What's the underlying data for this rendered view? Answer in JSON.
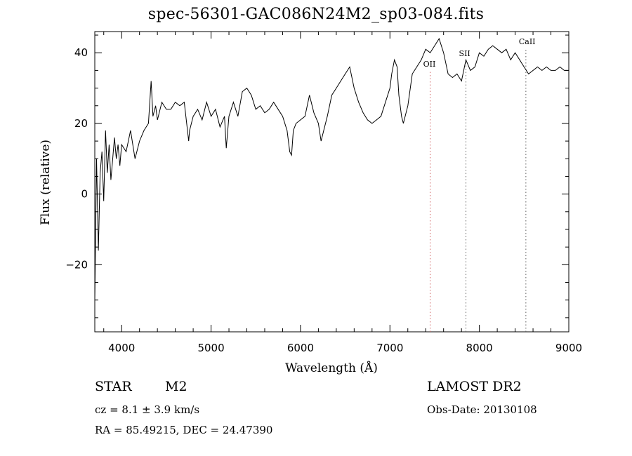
{
  "chart_data": {
    "type": "line",
    "title": "spec-56301-GAC086N24M2_sp03-084.fits",
    "xlabel": "Wavelength (Å)",
    "ylabel": "Flux (relative)",
    "xlim": [
      3700,
      9000
    ],
    "ylim": [
      -39,
      46
    ],
    "xticks": [
      4000,
      5000,
      6000,
      7000,
      8000,
      9000
    ],
    "yticks": [
      -20,
      0,
      20,
      40
    ],
    "series": [
      {
        "x": [
          3700,
          3720,
          3740,
          3760,
          3780,
          3800,
          3820,
          3840,
          3860,
          3880,
          3900,
          3920,
          3940,
          3960,
          3980,
          4000,
          4050,
          4100,
          4150,
          4200,
          4250,
          4300,
          4330,
          4350,
          4380,
          4400,
          4450,
          4500,
          4550,
          4600,
          4650,
          4700,
          4750,
          4760,
          4800,
          4850,
          4900,
          4950,
          5000,
          5050,
          5100,
          5150,
          5170,
          5200,
          5250,
          5300,
          5350,
          5400,
          5450,
          5500,
          5550,
          5600,
          5650,
          5700,
          5750,
          5800,
          5850,
          5880,
          5900,
          5920,
          5950,
          6000,
          6050,
          6100,
          6150,
          6200,
          6230,
          6260,
          6300,
          6350,
          6400,
          6450,
          6500,
          6550,
          6600,
          6650,
          6700,
          6750,
          6800,
          6850,
          6900,
          6950,
          7000,
          7020,
          7050,
          7080,
          7100,
          7130,
          7150,
          7200,
          7250,
          7300,
          7350,
          7400,
          7450,
          7500,
          7550,
          7600,
          7650,
          7700,
          7750,
          7800,
          7850,
          7900,
          7950,
          8000,
          8050,
          8100,
          8150,
          8200,
          8250,
          8300,
          8350,
          8400,
          8450,
          8500,
          8550,
          8600,
          8650,
          8700,
          8750,
          8800,
          8850,
          8900,
          8950,
          9000
        ],
        "y": [
          -30,
          10,
          -16,
          6,
          12,
          -2,
          18,
          6,
          14,
          4,
          10,
          16,
          10,
          14,
          8,
          14,
          12,
          18,
          10,
          15,
          18,
          20,
          32,
          22,
          25,
          21,
          26,
          24,
          24,
          26,
          25,
          26,
          15,
          18,
          22,
          24,
          21,
          26,
          22,
          24,
          19,
          22,
          13,
          22,
          26,
          22,
          29,
          30,
          28,
          24,
          25,
          23,
          24,
          26,
          24,
          22,
          18,
          12,
          11,
          18,
          20,
          21,
          22,
          28,
          23,
          20,
          15,
          18,
          22,
          28,
          30,
          32,
          34,
          36,
          30,
          26,
          23,
          21,
          20,
          21,
          22,
          26,
          30,
          34,
          38,
          36,
          28,
          22,
          20,
          25,
          34,
          36,
          38,
          41,
          40,
          42,
          44,
          40,
          34,
          33,
          34,
          32,
          38,
          35,
          36,
          40,
          39,
          41,
          42,
          41,
          40,
          41,
          38,
          40,
          38,
          36,
          34,
          35,
          36,
          35,
          36,
          35,
          35,
          36,
          35,
          35
        ]
      }
    ],
    "reference_lines": [
      {
        "x": 7450,
        "label": "OII",
        "color": "#d06060"
      },
      {
        "x": 7850,
        "label": "SII",
        "color": "#606060"
      },
      {
        "x": 8520,
        "label": "CaII",
        "color": "#606060"
      }
    ]
  },
  "footer": {
    "object_class": "STAR",
    "subclass": "M2",
    "cz": "cz = 8.1 ± 3.9 km/s",
    "radec": "RA =  85.49215, DEC =  24.47390",
    "survey": "LAMOST DR2",
    "obs_date": "Obs-Date: 20130108"
  }
}
